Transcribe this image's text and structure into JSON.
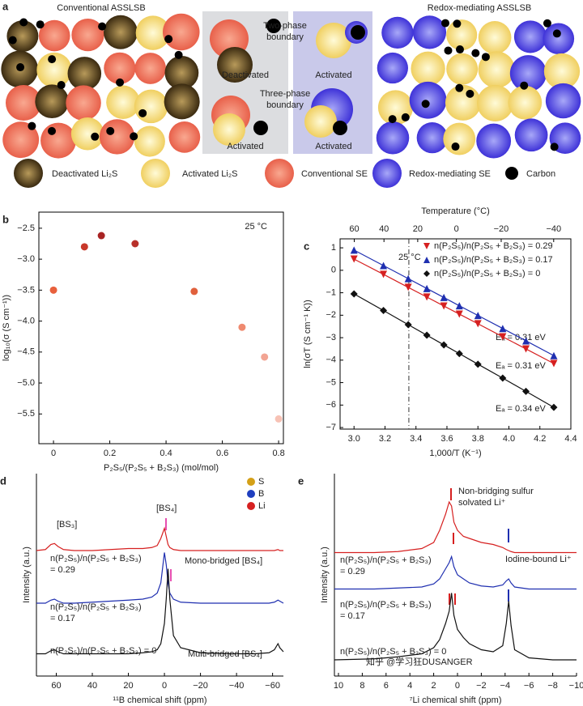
{
  "figure": {
    "panel_a": {
      "label": "a",
      "left_title": "Conventional ASSLSB",
      "right_title": "Redox-mediating ASSLSB",
      "boundary_top": [
        "Two-phase",
        "boundary"
      ],
      "boundary_bottom": [
        "Three-phase",
        "boundary"
      ],
      "states": [
        "Deactivated",
        "Activated",
        "Activated",
        "Activated"
      ],
      "legend": [
        "Deactivated Li₂S",
        "Activated Li₂S",
        "Conventional SE",
        "Redox-mediating SE",
        "Carbon"
      ]
    }
  },
  "chart_data": [
    {
      "type": "scatter",
      "label": "b",
      "annotations": [
        "25 °C"
      ],
      "xlabel": "P₂S₅/(P₂S₅ + B₂S₃) (mol/mol)",
      "ylabel": "log₁₀(σ (S cm⁻¹))",
      "x": [
        0,
        0.11,
        0.17,
        0.29,
        0.5,
        0.67,
        0.75,
        0.8
      ],
      "values": [
        -3.5,
        -2.8,
        -2.62,
        -2.75,
        -3.52,
        -4.1,
        -4.58,
        -5.58
      ],
      "point_colors": [
        "#e8603c",
        "#c8382a",
        "#a82323",
        "#b8302a",
        "#e0603c",
        "#ef8a70",
        "#f2a493",
        "#f7c2b5"
      ],
      "xlim": [
        -0.052,
        0.817
      ],
      "ylim": [
        -5.98,
        -2.24
      ],
      "xticks": [
        0,
        0.2,
        0.4,
        0.6,
        0.8
      ],
      "yticks": [
        {
          "value": -2.5,
          "label": "−2.5"
        },
        {
          "value": -3,
          "label": "−3.0"
        },
        {
          "value": -3.5,
          "label": "−3.5"
        },
        {
          "value": -4,
          "label": "−4.0"
        },
        {
          "value": -4.5,
          "label": "−4.5"
        },
        {
          "value": -5,
          "label": "−5.0"
        },
        {
          "value": -5.5,
          "label": "−5.5"
        }
      ]
    },
    {
      "type": "line",
      "label": "c",
      "annotations": [
        "25 °C",
        "Eₐ = 0.31 eV",
        "Eₐ = 0.31 eV",
        "Eₐ = 0.34 eV"
      ],
      "xlabel": "1,000/T (K⁻¹)",
      "ylabel": "ln(σT (S cm⁻¹ K))",
      "x2label": "Temperature (°C)",
      "vline_temperature": 25,
      "legend": "upper right",
      "x": [
        3.0,
        3.19,
        3.35,
        3.47,
        3.58,
        3.68,
        3.8,
        3.96,
        4.11,
        4.29
      ],
      "series": [
        {
          "name": "n(P₂S₅)/n(P₂S₅ + B₂S₃) = 0.29",
          "color": "#d62020",
          "marker": "triangle-down",
          "values": [
            0.5,
            -0.18,
            -0.76,
            -1.19,
            -1.59,
            -1.95,
            -2.38,
            -2.96,
            -3.5,
            -4.15
          ]
        },
        {
          "name": "n(P₂S₅)/n(P₂S₅ + B₂S₃) = 0.17",
          "color": "#1f2fb0",
          "marker": "triangle-up",
          "values": [
            0.9,
            0.21,
            -0.37,
            -0.81,
            -1.21,
            -1.58,
            -2.01,
            -2.59,
            -3.14,
            -3.8
          ]
        },
        {
          "name": "n(P₂S₅)/n(P₂S₅ + B₂S₃) = 0",
          "color": "#111111",
          "marker": "diamond",
          "values": [
            -1.05,
            -1.79,
            -2.42,
            -2.89,
            -3.32,
            -3.71,
            -4.18,
            -4.8,
            -5.39,
            -6.1
          ]
        }
      ],
      "xlim": [
        2.91,
        4.4
      ],
      "ylim": [
        -7.07,
        1.4
      ],
      "xticks": [
        {
          "value": 3,
          "label": "3.0"
        },
        3.2,
        3.4,
        3.6,
        3.8,
        {
          "value": 4,
          "label": "4.0"
        },
        4.2,
        4.4
      ],
      "yticks": [
        1,
        0,
        {
          "value": -1,
          "label": "−1"
        },
        {
          "value": -2,
          "label": "−2"
        },
        {
          "value": -3,
          "label": "−3"
        },
        {
          "value": -4,
          "label": "−4"
        },
        {
          "value": -5,
          "label": "−5"
        },
        {
          "value": -6,
          "label": "−6"
        },
        {
          "value": -7,
          "label": "−7"
        }
      ],
      "x2ticks": [
        60,
        40,
        20,
        0,
        {
          "value": -20,
          "label": "−20"
        },
        {
          "value": -40,
          "label": "−40"
        }
      ]
    },
    {
      "type": "line",
      "label": "d",
      "annotations": [
        "[BS₃]",
        "[BS₄]",
        "Mono-bridged [BS₄]",
        "Multi-bridged [BS₄]"
      ],
      "xlabel": "¹¹B chemical shift (ppm)",
      "ylabel": "Intensity (a.u.)",
      "atom_legend": [
        {
          "name": "S",
          "color": "#d4a017"
        },
        {
          "name": "B",
          "color": "#1f3fbf"
        },
        {
          "name": "Li",
          "color": "#d62020"
        }
      ],
      "x": [
        71,
        66,
        63,
        61,
        59,
        56,
        50,
        40,
        30,
        20,
        12,
        7,
        4,
        2,
        0,
        -1,
        -2,
        -3,
        -5,
        -9,
        -20,
        -35,
        -50,
        -58,
        -61,
        -63,
        -64,
        -66
      ],
      "series": [
        {
          "label": [
            "n(P₂S₅)/n(P₂S₅ + B₂S₃)",
            "= 0.29"
          ],
          "color": "#d62020",
          "values": [
            6.2,
            6.25,
            6.5,
            6.55,
            6.4,
            6.25,
            6.2,
            6.2,
            6.25,
            6.3,
            6.3,
            6.35,
            6.45,
            6.8,
            7.3,
            6.9,
            6.5,
            6.35,
            6.25,
            6.2,
            6.2,
            6.2,
            6.2,
            6.2,
            6.2,
            6.25,
            6.2,
            6.2
          ]
        },
        {
          "label": [
            "n(P₂S₅)/n(P₂S₅ + B₂S₃)",
            "= 0.17"
          ],
          "color": "#1f2fb0",
          "values": [
            3.6,
            3.6,
            3.75,
            3.8,
            3.7,
            3.6,
            3.6,
            3.65,
            3.7,
            3.75,
            3.8,
            3.9,
            4.1,
            4.6,
            6.1,
            5.5,
            4.6,
            4.1,
            3.8,
            3.65,
            3.6,
            3.6,
            3.6,
            3.6,
            3.65,
            3.75,
            3.7,
            3.6
          ]
        },
        {
          "label": [
            "n(P₂S₅)/n(P₂S₅ + B₂S₃) = 0"
          ],
          "color": "#111111",
          "values": [
            1.1,
            1.1,
            1.25,
            1.3,
            1.2,
            1.1,
            1.1,
            1.1,
            1.1,
            1.1,
            1.15,
            1.2,
            1.3,
            1.6,
            2.6,
            3.8,
            5.3,
            3.8,
            2.0,
            1.4,
            1.15,
            1.1,
            1.1,
            1.15,
            1.3,
            1.6,
            1.4,
            1.2
          ]
        }
      ],
      "xlim": [
        71,
        -66
      ],
      "ylim": [
        0,
        10
      ],
      "xticks": [
        60,
        40,
        20,
        0,
        {
          "value": -20,
          "label": "−20"
        },
        {
          "value": -40,
          "label": "−40"
        },
        {
          "value": -60,
          "label": "−60"
        }
      ]
    },
    {
      "type": "line",
      "label": "e",
      "annotations": [
        "Non-bridging sulfur",
        "solvated Li⁺",
        "Iodine-bound Li⁺",
        "知乎 @学习狂DUSANGER"
      ],
      "xlabel": "⁷Li chemical shift (ppm)",
      "ylabel": "Intensity (a.u.)",
      "x": [
        10.34,
        7,
        5,
        3,
        2,
        1.5,
        1,
        0.7,
        0.5,
        0.3,
        0,
        -0.5,
        -1,
        -2,
        -3,
        -3.8,
        -4.1,
        -4.3,
        -4.5,
        -4.8,
        -6,
        -8,
        -10
      ],
      "series": [
        {
          "label": [
            "n(P₂S₅)/n(P₂S₅ + B₂S₃)",
            "= 0.29"
          ],
          "color": "#d62020",
          "values": [
            6.1,
            6.1,
            6.15,
            6.3,
            6.6,
            7.2,
            8.0,
            8.6,
            8.4,
            7.6,
            7.2,
            6.9,
            6.8,
            6.6,
            6.5,
            6.35,
            6.25,
            6.2,
            6.15,
            6.1,
            6.1,
            6.1,
            6.1
          ]
        },
        {
          "label": [
            "n(P₂S₅)/n(P₂S₅ + B₂S₃)",
            "= 0.17"
          ],
          "color": "#1f2fb0",
          "values": [
            4.3,
            4.3,
            4.35,
            4.4,
            4.55,
            4.8,
            5.3,
            5.6,
            5.9,
            5.4,
            5.0,
            4.8,
            4.6,
            4.45,
            4.4,
            4.5,
            4.7,
            4.8,
            4.6,
            4.4,
            4.3,
            4.3,
            4.3
          ]
        },
        {
          "label": [
            "n(P₂S₅)/n(P₂S₅ + B₂S₃) = 0"
          ],
          "color": "#111111",
          "values": [
            0.8,
            0.85,
            0.95,
            1.1,
            1.4,
            1.8,
            2.6,
            3.2,
            4.1,
            3.0,
            2.3,
            1.9,
            1.6,
            1.3,
            1.2,
            1.5,
            2.6,
            3.7,
            2.5,
            1.3,
            0.9,
            0.8,
            0.8
          ]
        }
      ],
      "xlim": [
        10.34,
        -10
      ],
      "ylim": [
        0,
        10
      ],
      "xticks": [
        10,
        8,
        6,
        4,
        2,
        0,
        {
          "value": -2,
          "label": "−2"
        },
        {
          "value": -4,
          "label": "−4"
        },
        {
          "value": -6,
          "label": "−6"
        },
        {
          "value": -8,
          "label": "−8"
        },
        {
          "value": -10,
          "label": "−10"
        }
      ]
    }
  ]
}
